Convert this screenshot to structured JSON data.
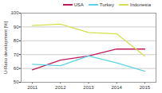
{
  "chart_data": {
    "type": "line",
    "x": [
      2011,
      2012,
      2013,
      2014,
      2015
    ],
    "xlim": [
      2010.6,
      2015.4
    ],
    "xticks": [
      2011,
      2012,
      2013,
      2014,
      2015
    ],
    "ylabel": "U-Ratio development [%]",
    "ylim": [
      50,
      100
    ],
    "yticks": [
      50,
      60,
      70,
      80,
      90,
      100
    ],
    "grid": true,
    "legend": "top-right",
    "series": [
      {
        "name": "USA",
        "color": "#c2185b",
        "values": [
          59,
          66,
          69,
          74,
          74
        ]
      },
      {
        "name": "Turkey",
        "color": "#5fd3e8",
        "values": [
          63,
          62,
          69,
          64,
          58
        ]
      },
      {
        "name": "Indonesia",
        "color": "#d6e04e",
        "values": [
          91,
          92,
          86,
          85,
          69
        ]
      }
    ]
  }
}
